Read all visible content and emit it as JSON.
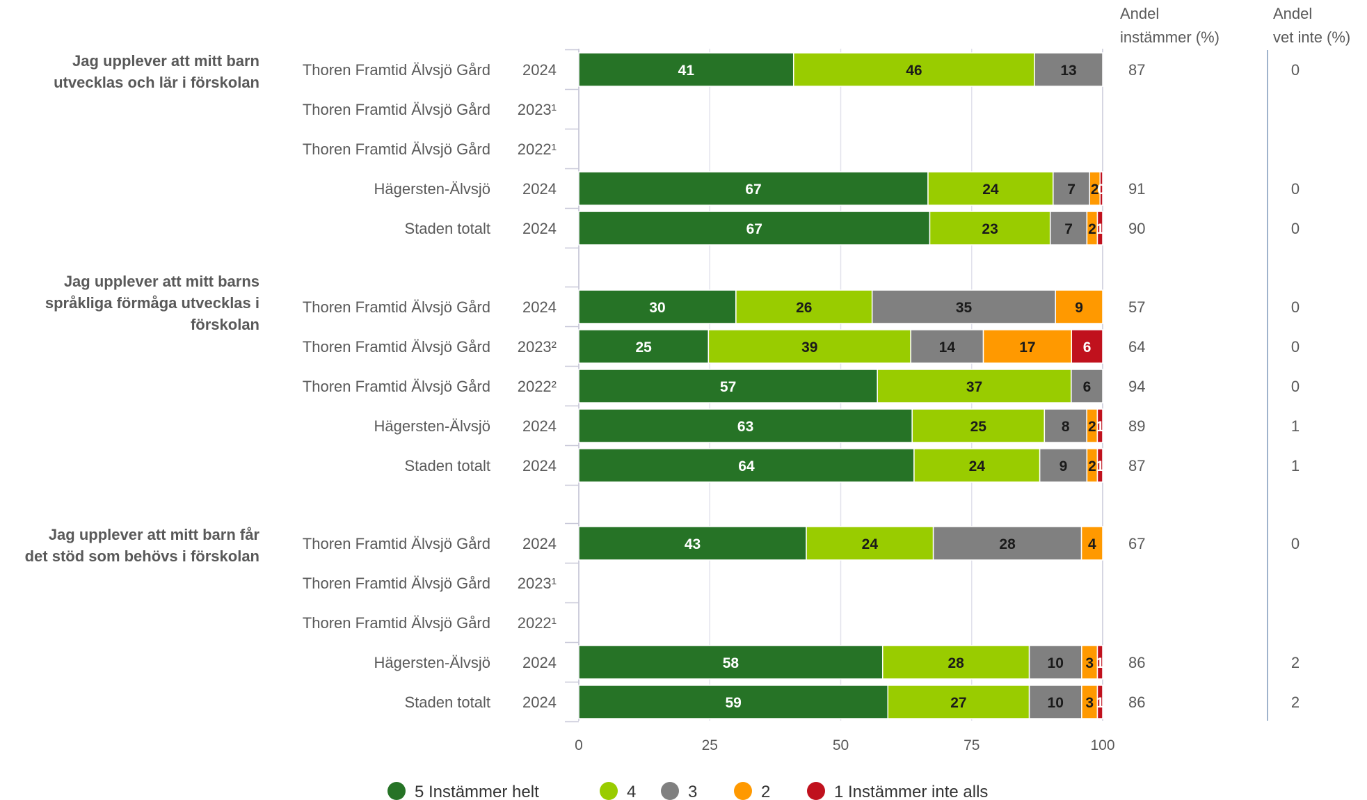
{
  "chart_data": {
    "type": "bar",
    "orientation": "horizontal",
    "stacked": true,
    "xlim": [
      0,
      100
    ],
    "x_ticks": [
      "0",
      "25",
      "50",
      "75",
      "100"
    ],
    "grid": true,
    "legend_position": "bottom",
    "side_columns": [
      {
        "header": [
          "Andel",
          "instämmer (%)"
        ],
        "key": "agree"
      },
      {
        "header": [
          "Andel",
          "vet inte (%)"
        ],
        "key": "dontknow"
      }
    ],
    "series": [
      {
        "name": "5 Instämmer helt",
        "color": "#267326"
      },
      {
        "name": "4",
        "color": "#99cc00"
      },
      {
        "name": "3",
        "color": "#808080"
      },
      {
        "name": "2",
        "color": "#ff9900"
      },
      {
        "name": "1 Instämmer inte alls",
        "color": "#c0111d"
      }
    ],
    "groups": [
      {
        "question": [
          "Jag upplever att mitt barn",
          "utvecklas och lär i förskolan"
        ],
        "rows": [
          {
            "label": "Thoren Framtid Älvsjö Gård",
            "year": "2024",
            "values": [
              41,
              46,
              13,
              0,
              0
            ],
            "labels": [
              "41",
              "46",
              "13",
              "0",
              ""
            ],
            "agree": "87",
            "dontknow": "0"
          },
          {
            "label": "Thoren Framtid Älvsjö Gård",
            "year": "2023¹",
            "values": null,
            "agree": "",
            "dontknow": ""
          },
          {
            "label": "Thoren Framtid Älvsjö Gård",
            "year": "2022¹",
            "values": null,
            "agree": "",
            "dontknow": ""
          },
          {
            "label": "Hägersten-Älvsjö",
            "year": "2024",
            "values": [
              67,
              24,
              7,
              2,
              0.5
            ],
            "labels": [
              "67",
              "24",
              "7",
              "2",
              "0"
            ],
            "agree": "91",
            "dontknow": "0"
          },
          {
            "label": "Staden totalt",
            "year": "2024",
            "values": [
              67,
              23,
              7,
              2,
              1
            ],
            "labels": [
              "67",
              "23",
              "7",
              "2",
              "1"
            ],
            "agree": "90",
            "dontknow": "0"
          }
        ]
      },
      {
        "question": [
          "Jag upplever att mitt barns",
          "språkliga förmåga utvecklas i",
          "förskolan"
        ],
        "rows": [
          {
            "label": "Thoren Framtid Älvsjö Gård",
            "year": "2024",
            "values": [
              30,
              26,
              35,
              9,
              0
            ],
            "labels": [
              "30",
              "26",
              "35",
              "9",
              "0"
            ],
            "agree": "57",
            "dontknow": "0"
          },
          {
            "label": "Thoren Framtid Älvsjö Gård",
            "year": "2023²",
            "values": [
              25,
              39,
              14,
              17,
              6
            ],
            "labels": [
              "25",
              "39",
              "14",
              "17",
              "6"
            ],
            "agree": "64",
            "dontknow": "0"
          },
          {
            "label": "Thoren Framtid Älvsjö Gård",
            "year": "2022²",
            "values": [
              57,
              37,
              6,
              0,
              0
            ],
            "labels": [
              "57",
              "37",
              "6",
              "0",
              ""
            ],
            "agree": "94",
            "dontknow": "0"
          },
          {
            "label": "Hägersten-Älvsjö",
            "year": "2024",
            "values": [
              63,
              25,
              8,
              2,
              1
            ],
            "labels": [
              "63",
              "25",
              "8",
              "2",
              "1"
            ],
            "agree": "89",
            "dontknow": "1"
          },
          {
            "label": "Staden totalt",
            "year": "2024",
            "values": [
              64,
              24,
              9,
              2,
              1
            ],
            "labels": [
              "64",
              "24",
              "9",
              "2",
              "1"
            ],
            "agree": "87",
            "dontknow": "1"
          }
        ]
      },
      {
        "question": [
          "Jag upplever att mitt barn får",
          "det stöd som behövs i förskolan"
        ],
        "rows": [
          {
            "label": "Thoren Framtid Älvsjö Gård",
            "year": "2024",
            "values": [
              43,
              24,
              28,
              4,
              0
            ],
            "labels": [
              "43",
              "24",
              "28",
              "4",
              "0"
            ],
            "agree": "67",
            "dontknow": "0"
          },
          {
            "label": "Thoren Framtid Älvsjö Gård",
            "year": "2023¹",
            "values": null,
            "agree": "",
            "dontknow": ""
          },
          {
            "label": "Thoren Framtid Älvsjö Gård",
            "year": "2022¹",
            "values": null,
            "agree": "",
            "dontknow": ""
          },
          {
            "label": "Hägersten-Älvsjö",
            "year": "2024",
            "values": [
              58,
              28,
              10,
              3,
              1
            ],
            "labels": [
              "58",
              "28",
              "10",
              "3",
              "1"
            ],
            "agree": "86",
            "dontknow": "2"
          },
          {
            "label": "Staden totalt",
            "year": "2024",
            "values": [
              59,
              27,
              10,
              3,
              1
            ],
            "labels": [
              "59",
              "27",
              "10",
              "3",
              "1"
            ],
            "agree": "86",
            "dontknow": "2"
          }
        ]
      }
    ]
  }
}
